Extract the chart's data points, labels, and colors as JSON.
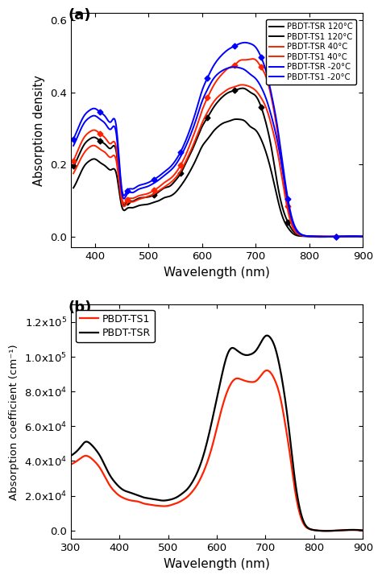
{
  "panel_a": {
    "xlabel": "Wavelength (nm)",
    "ylabel": "Absorption density",
    "xlim": [
      355,
      900
    ],
    "ylim": [
      -0.03,
      0.62
    ],
    "yticks": [
      0.0,
      0.2,
      0.4,
      0.6
    ],
    "xticks": [
      400,
      500,
      600,
      700,
      800,
      900
    ],
    "label": "(a)",
    "series": [
      {
        "label": "PBDT-TSR 120°C",
        "color": "#000000",
        "marker": "D",
        "markersize": 3.5,
        "linewidth": 1.4,
        "x": [
          360,
          370,
          380,
          390,
          400,
          410,
          420,
          430,
          440,
          450,
          460,
          470,
          480,
          490,
          500,
          510,
          520,
          530,
          540,
          550,
          560,
          570,
          580,
          590,
          600,
          610,
          620,
          630,
          640,
          650,
          660,
          670,
          680,
          690,
          700,
          710,
          720,
          730,
          740,
          750,
          760,
          770,
          780,
          790,
          800,
          850,
          900
        ],
        "y": [
          0.195,
          0.225,
          0.255,
          0.27,
          0.275,
          0.265,
          0.255,
          0.245,
          0.235,
          0.105,
          0.095,
          0.098,
          0.105,
          0.108,
          0.11,
          0.115,
          0.125,
          0.135,
          0.14,
          0.155,
          0.175,
          0.205,
          0.235,
          0.27,
          0.305,
          0.33,
          0.355,
          0.375,
          0.39,
          0.4,
          0.405,
          0.41,
          0.41,
          0.4,
          0.39,
          0.36,
          0.31,
          0.24,
          0.15,
          0.08,
          0.04,
          0.015,
          0.005,
          0.002,
          0.001,
          0.0,
          0.0
        ]
      },
      {
        "label": "PBDT-TS1 120°C",
        "color": "#000000",
        "marker": null,
        "markersize": 0,
        "linewidth": 1.4,
        "x": [
          360,
          370,
          380,
          390,
          400,
          410,
          420,
          430,
          440,
          450,
          460,
          470,
          480,
          490,
          500,
          510,
          520,
          530,
          540,
          550,
          560,
          570,
          580,
          590,
          600,
          610,
          620,
          630,
          640,
          650,
          660,
          670,
          680,
          690,
          700,
          710,
          720,
          730,
          740,
          750,
          760,
          770,
          780,
          790,
          800,
          850,
          900
        ],
        "y": [
          0.135,
          0.165,
          0.195,
          0.21,
          0.215,
          0.205,
          0.195,
          0.185,
          0.175,
          0.085,
          0.078,
          0.08,
          0.085,
          0.088,
          0.09,
          0.095,
          0.1,
          0.108,
          0.112,
          0.122,
          0.14,
          0.162,
          0.188,
          0.218,
          0.25,
          0.27,
          0.29,
          0.305,
          0.315,
          0.32,
          0.325,
          0.325,
          0.32,
          0.305,
          0.295,
          0.27,
          0.23,
          0.175,
          0.11,
          0.055,
          0.025,
          0.008,
          0.002,
          0.001,
          0.0,
          0.0,
          0.0
        ]
      },
      {
        "label": "PBDT-TSR 40°C",
        "color": "#ff2200",
        "marker": "D",
        "markersize": 3.5,
        "linewidth": 1.4,
        "x": [
          360,
          370,
          380,
          390,
          400,
          410,
          420,
          430,
          440,
          450,
          460,
          470,
          480,
          490,
          500,
          510,
          520,
          530,
          540,
          550,
          560,
          570,
          580,
          590,
          600,
          610,
          620,
          630,
          640,
          650,
          660,
          670,
          680,
          690,
          700,
          710,
          720,
          730,
          740,
          750,
          760,
          770,
          780,
          790,
          800,
          850,
          900
        ],
        "y": [
          0.21,
          0.245,
          0.275,
          0.29,
          0.295,
          0.285,
          0.272,
          0.258,
          0.245,
          0.11,
          0.102,
          0.106,
          0.112,
          0.116,
          0.12,
          0.128,
          0.138,
          0.15,
          0.16,
          0.175,
          0.198,
          0.228,
          0.265,
          0.305,
          0.35,
          0.385,
          0.415,
          0.438,
          0.455,
          0.468,
          0.475,
          0.488,
          0.49,
          0.492,
          0.49,
          0.47,
          0.44,
          0.38,
          0.295,
          0.185,
          0.085,
          0.025,
          0.008,
          0.002,
          0.001,
          0.0,
          0.0
        ]
      },
      {
        "label": "PBDT-TS1 40°C",
        "color": "#ff2200",
        "marker": null,
        "markersize": 0,
        "linewidth": 1.4,
        "x": [
          360,
          370,
          380,
          390,
          400,
          410,
          420,
          430,
          440,
          450,
          460,
          470,
          480,
          490,
          500,
          510,
          520,
          530,
          540,
          550,
          560,
          570,
          580,
          590,
          600,
          610,
          620,
          630,
          640,
          650,
          660,
          670,
          680,
          690,
          700,
          710,
          720,
          730,
          740,
          750,
          760,
          770,
          780,
          790,
          800,
          850,
          900
        ],
        "y": [
          0.175,
          0.205,
          0.232,
          0.248,
          0.252,
          0.242,
          0.232,
          0.22,
          0.21,
          0.098,
          0.092,
          0.096,
          0.102,
          0.107,
          0.112,
          0.118,
          0.128,
          0.138,
          0.148,
          0.162,
          0.182,
          0.21,
          0.242,
          0.278,
          0.315,
          0.345,
          0.37,
          0.388,
          0.4,
          0.41,
          0.415,
          0.42,
          0.42,
          0.415,
          0.405,
          0.385,
          0.355,
          0.305,
          0.24,
          0.155,
          0.072,
          0.022,
          0.006,
          0.002,
          0.001,
          0.0,
          0.0
        ]
      },
      {
        "label": "PBDT-TSR -20°C",
        "color": "#0000ff",
        "marker": "D",
        "markersize": 3.5,
        "linewidth": 1.4,
        "x": [
          360,
          370,
          380,
          390,
          400,
          410,
          420,
          430,
          440,
          450,
          460,
          470,
          480,
          490,
          500,
          510,
          520,
          530,
          540,
          550,
          560,
          570,
          580,
          590,
          600,
          610,
          620,
          630,
          640,
          650,
          660,
          670,
          680,
          690,
          700,
          710,
          720,
          730,
          740,
          750,
          760,
          770,
          780,
          790,
          800,
          850,
          900
        ],
        "y": [
          0.27,
          0.305,
          0.335,
          0.35,
          0.355,
          0.345,
          0.332,
          0.318,
          0.305,
          0.135,
          0.127,
          0.132,
          0.14,
          0.145,
          0.15,
          0.158,
          0.168,
          0.18,
          0.192,
          0.21,
          0.235,
          0.268,
          0.308,
          0.355,
          0.405,
          0.44,
          0.47,
          0.492,
          0.508,
          0.52,
          0.528,
          0.535,
          0.538,
          0.535,
          0.525,
          0.498,
          0.455,
          0.39,
          0.31,
          0.205,
          0.105,
          0.04,
          0.012,
          0.003,
          0.001,
          0.0,
          0.0
        ]
      },
      {
        "label": "PBDT-TS1 -20°C",
        "color": "#0000ff",
        "marker": null,
        "markersize": 0,
        "linewidth": 1.4,
        "x": [
          360,
          370,
          380,
          390,
          400,
          410,
          420,
          430,
          440,
          450,
          460,
          470,
          480,
          490,
          500,
          510,
          520,
          530,
          540,
          550,
          560,
          570,
          580,
          590,
          600,
          610,
          620,
          630,
          640,
          650,
          660,
          670,
          680,
          690,
          700,
          710,
          720,
          730,
          740,
          750,
          760,
          770,
          780,
          790,
          800,
          850,
          900
        ],
        "y": [
          0.252,
          0.285,
          0.315,
          0.33,
          0.335,
          0.325,
          0.312,
          0.298,
          0.285,
          0.125,
          0.118,
          0.122,
          0.13,
          0.135,
          0.14,
          0.148,
          0.158,
          0.17,
          0.182,
          0.198,
          0.222,
          0.252,
          0.288,
          0.33,
          0.375,
          0.408,
          0.435,
          0.452,
          0.462,
          0.468,
          0.47,
          0.468,
          0.462,
          0.45,
          0.438,
          0.415,
          0.38,
          0.33,
          0.268,
          0.185,
          0.095,
          0.035,
          0.01,
          0.003,
          0.001,
          0.0,
          0.0
        ]
      }
    ]
  },
  "panel_b": {
    "xlabel": "Wavelength (nm)",
    "ylabel": "Absorption coefficient (cm⁻¹)",
    "xlim": [
      300,
      900
    ],
    "ylim": [
      -5000,
      130000
    ],
    "yticks": [
      0,
      20000,
      40000,
      60000,
      80000,
      100000,
      120000
    ],
    "xticks": [
      300,
      400,
      500,
      600,
      700,
      800,
      900
    ],
    "label": "(b)",
    "series": [
      {
        "label": "PBDT-TS1",
        "color": "#ff2200",
        "linewidth": 1.6,
        "x": [
          300,
          310,
          320,
          330,
          340,
          350,
          360,
          370,
          380,
          390,
          400,
          410,
          420,
          430,
          440,
          450,
          460,
          470,
          480,
          490,
          500,
          510,
          520,
          530,
          540,
          550,
          560,
          570,
          580,
          590,
          600,
          610,
          620,
          630,
          640,
          650,
          660,
          670,
          680,
          690,
          700,
          710,
          720,
          730,
          740,
          750,
          760,
          770,
          780,
          790,
          800,
          850,
          900
        ],
        "y": [
          38000,
          39500,
          41500,
          43000,
          42000,
          39500,
          36000,
          31000,
          26000,
          22500,
          20000,
          18500,
          17500,
          17000,
          16500,
          15500,
          15000,
          14500,
          14200,
          14000,
          14200,
          15000,
          16000,
          17500,
          19500,
          22500,
          26500,
          32000,
          39000,
          48000,
          59000,
          70000,
          79000,
          85000,
          87500,
          87000,
          86000,
          85500,
          86000,
          89000,
          92000,
          91000,
          86000,
          77000,
          62000,
          44000,
          24000,
          10000,
          3000,
          800,
          200,
          0,
          0
        ]
      },
      {
        "label": "PBDT-TSR",
        "color": "#000000",
        "linewidth": 1.6,
        "x": [
          300,
          310,
          320,
          330,
          340,
          350,
          360,
          370,
          380,
          390,
          400,
          410,
          420,
          430,
          440,
          450,
          460,
          470,
          480,
          490,
          500,
          510,
          520,
          530,
          540,
          550,
          560,
          570,
          580,
          590,
          600,
          610,
          620,
          630,
          640,
          650,
          660,
          670,
          680,
          690,
          700,
          710,
          720,
          730,
          740,
          750,
          760,
          770,
          780,
          790,
          800,
          850,
          900
        ],
        "y": [
          43000,
          45000,
          48000,
          51000,
          50000,
          47000,
          43000,
          37500,
          32000,
          28000,
          25000,
          23000,
          22000,
          21000,
          20000,
          19000,
          18500,
          18000,
          17500,
          17200,
          17500,
          18200,
          19500,
          21500,
          24000,
          28000,
          33500,
          41000,
          51000,
          63000,
          76000,
          89000,
          100000,
          105000,
          104000,
          102000,
          101000,
          101500,
          103500,
          108000,
          112000,
          111000,
          105000,
          93000,
          76000,
          54000,
          30000,
          13000,
          4000,
          1000,
          200,
          0,
          0
        ]
      }
    ]
  }
}
